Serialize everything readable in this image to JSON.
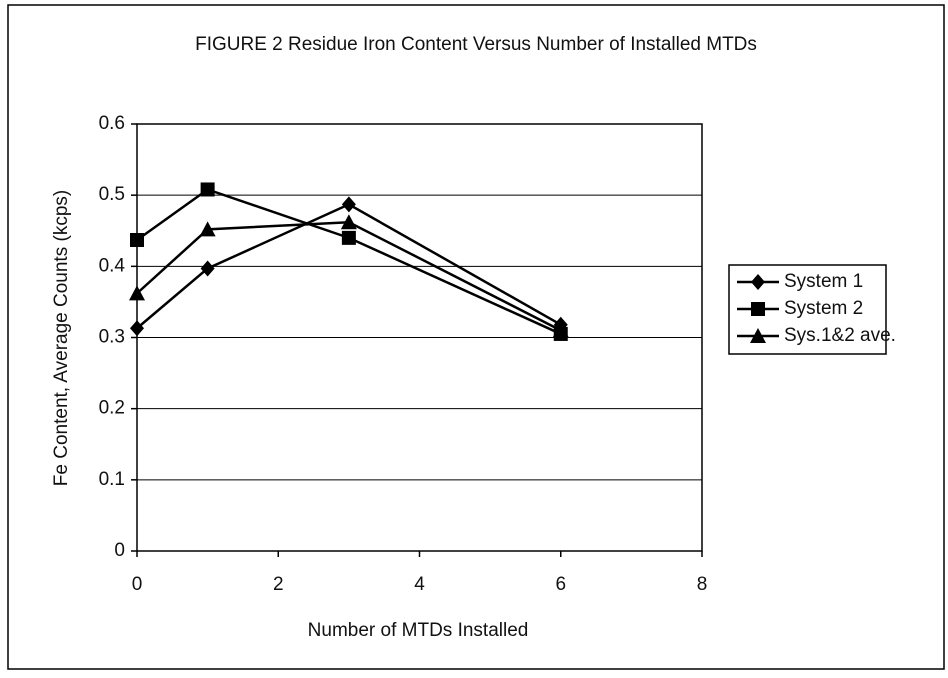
{
  "chart_data": {
    "type": "line",
    "title": "FIGURE 2  Residue Iron Content Versus Number of Installed MTDs",
    "x_label": "Number of MTDs Installed",
    "y_label": "Fe Content, Average Counts (kcps)",
    "x": [
      0,
      1,
      3,
      6
    ],
    "series": [
      {
        "name": "System 1",
        "color": "#000000",
        "marker": "diamond",
        "values": [
          0.313,
          0.397,
          0.487,
          0.318
        ]
      },
      {
        "name": "System 2",
        "color": "#000000",
        "marker": "square",
        "values": [
          0.437,
          0.508,
          0.44,
          0.305
        ]
      },
      {
        "name": "Sys.1&2 ave.",
        "color": "#000000",
        "marker": "triangle",
        "values": [
          0.362,
          0.452,
          0.462,
          0.31
        ]
      }
    ],
    "xlim": [
      0,
      8
    ],
    "xticks": [
      0,
      2,
      4,
      6,
      8
    ],
    "ylim": [
      0,
      0.6
    ],
    "yticks": [
      0,
      0.1,
      0.2,
      0.3,
      0.4,
      0.5,
      0.6
    ],
    "grid": true,
    "legend": "right"
  }
}
